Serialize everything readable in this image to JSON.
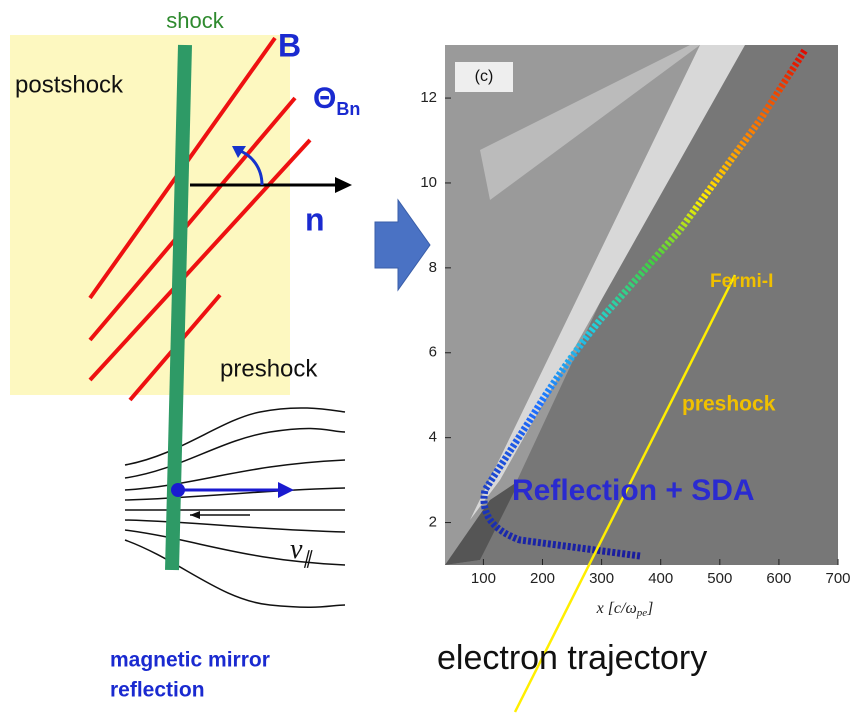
{
  "left": {
    "shock": "shock",
    "postshock": "postshock",
    "preshock": "preshock",
    "field": "B",
    "angle": "Θ",
    "angle_sub": "Bn",
    "normal": "n",
    "velocity": "v",
    "velocity_sub": "∥",
    "caption": [
      "magnetic mirror",
      "reflection"
    ]
  },
  "right": {
    "panel": "(c)",
    "xlim": [
      35,
      700
    ],
    "ylim": [
      1,
      13.25
    ],
    "xticks": [
      100,
      200,
      300,
      400,
      500,
      600,
      700
    ],
    "yticks": [
      2,
      4,
      6,
      8,
      10,
      12
    ],
    "x_label": "x [c/ω",
    "x_label_sub": "pe",
    "x_label_end": "]",
    "fermi": "Fermi-I",
    "preshock": "preshock",
    "reflection": "Reflection + SDA",
    "caption": "electron trajectory"
  }
}
